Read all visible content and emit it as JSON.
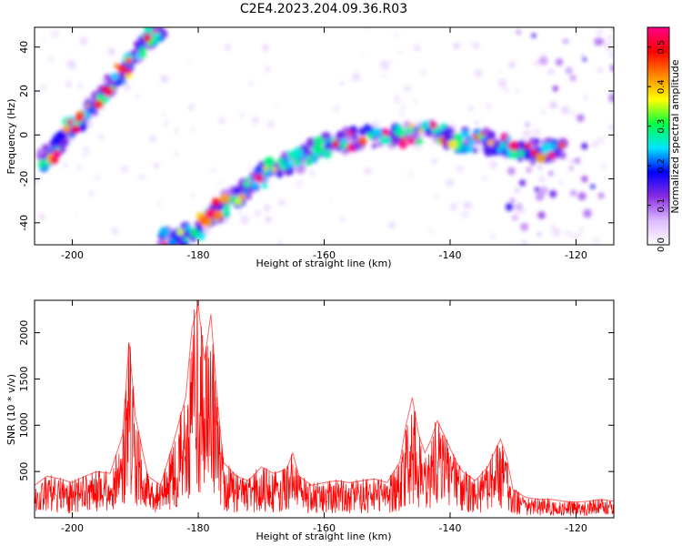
{
  "chart_data": [
    {
      "type": "heatmap",
      "title": "C2E4.2023.204.09.36.R03",
      "xlabel": "Height of straight line (km)",
      "ylabel": "Frequency (Hz)",
      "xlim": [
        -206,
        -114
      ],
      "ylim": [
        -50,
        49
      ],
      "xticks": [
        -200,
        -180,
        -160,
        -140,
        -120
      ],
      "yticks": [
        -40,
        -20,
        0,
        20,
        40
      ],
      "grid": false,
      "colorbar": {
        "label": "Normalized spectral amplitude",
        "range": [
          0.0,
          0.55
        ],
        "ticks": [
          "0.0",
          "0.1",
          "0.2",
          "0.3",
          "0.4",
          "0.5"
        ],
        "colormap": [
          "#ffffff",
          "#ddbbff",
          "#8a2be2",
          "#0000ff",
          "#00e5ff",
          "#00ff44",
          "#ffff00",
          "#ff8800",
          "#ff0000",
          "#ff0088"
        ]
      },
      "ridge": [
        {
          "x": -205,
          "y": -12
        },
        {
          "x": -202,
          "y": -5
        },
        {
          "x": -200,
          "y": 4
        },
        {
          "x": -197,
          "y": 12
        },
        {
          "x": -194,
          "y": 22
        },
        {
          "x": -191,
          "y": 33
        },
        {
          "x": -188,
          "y": 43
        },
        {
          "x": -186,
          "y": 49
        },
        {
          "x": -186,
          "y": -48
        },
        {
          "x": -182,
          "y": -46
        },
        {
          "x": -178,
          "y": -38
        },
        {
          "x": -175,
          "y": -30
        },
        {
          "x": -172,
          "y": -24
        },
        {
          "x": -169,
          "y": -17
        },
        {
          "x": -165,
          "y": -12
        },
        {
          "x": -162,
          "y": -8
        },
        {
          "x": -159,
          "y": -4
        },
        {
          "x": -155,
          "y": -2
        },
        {
          "x": -150,
          "y": 0
        },
        {
          "x": -146,
          "y": 0
        },
        {
          "x": -142,
          "y": 1
        },
        {
          "x": -139,
          "y": -2
        },
        {
          "x": -135,
          "y": -3
        },
        {
          "x": -132,
          "y": -4
        },
        {
          "x": -129,
          "y": -6
        },
        {
          "x": -125,
          "y": -7
        },
        {
          "x": -122,
          "y": -7
        }
      ]
    },
    {
      "type": "line",
      "xlabel": "Height of straight line (km)",
      "ylabel": "SNR (10 * v/v)",
      "xlim": [
        -206,
        -114
      ],
      "ylim": [
        0,
        2350
      ],
      "xticks": [
        -200,
        -180,
        -160,
        -140,
        -120
      ],
      "yticks": [
        500,
        1000,
        1500,
        2000
      ],
      "color": "#ff0000",
      "grid": false,
      "series": [
        {
          "x": [
            -206,
            -204,
            -202,
            -200,
            -198,
            -196,
            -194,
            -192,
            -191,
            -190,
            -188,
            -186,
            -184,
            -182,
            -181,
            -180,
            -179,
            -178,
            -177,
            -176,
            -174,
            -172,
            -170,
            -168,
            -166,
            -165,
            -164,
            -162,
            -160,
            -158,
            -156,
            -154,
            -152,
            -150,
            -148,
            -147,
            -146,
            -145,
            -144,
            -143,
            -142,
            -141,
            -140,
            -139,
            -138,
            -136,
            -134,
            -133,
            -132,
            -131,
            -130,
            -128,
            -126,
            -124,
            -122,
            -120,
            -118,
            -116,
            -114
          ],
          "y": [
            350,
            450,
            420,
            380,
            450,
            500,
            480,
            900,
            1900,
            1100,
            450,
            350,
            800,
            1300,
            2050,
            2300,
            1700,
            2200,
            1300,
            600,
            450,
            400,
            550,
            480,
            520,
            700,
            450,
            350,
            380,
            400,
            380,
            400,
            420,
            380,
            600,
            1000,
            1300,
            900,
            700,
            850,
            1050,
            900,
            750,
            600,
            500,
            400,
            550,
            700,
            850,
            650,
            300,
            220,
            200,
            200,
            180,
            170,
            180,
            200,
            180
          ]
        }
      ]
    }
  ]
}
